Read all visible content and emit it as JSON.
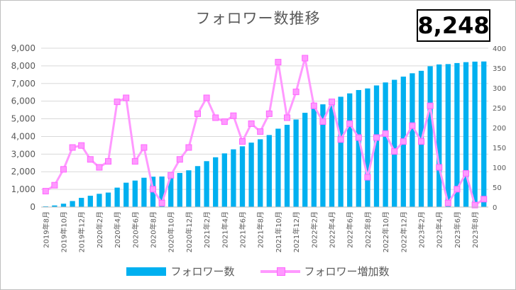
{
  "header": {
    "title": "フォロワー数推移",
    "total_followers": "8,248"
  },
  "colors": {
    "followers_bar": "#00b0f0",
    "increase_line": "#ff99ff",
    "grid": "#d9d9d9",
    "axis_text": "#595959"
  },
  "chart_data": {
    "type": "bar",
    "title": "フォロワー数推移",
    "categories": [
      "2019年8月",
      "2019年9月",
      "2019年10月",
      "2019年11月",
      "2019年12月",
      "2020年1月",
      "2020年2月",
      "2020年3月",
      "2020年4月",
      "2020年5月",
      "2020年6月",
      "2020年7月",
      "2020年8月",
      "2020年9月",
      "2020年10月",
      "2020年11月",
      "2020年12月",
      "2021年1月",
      "2021年2月",
      "2021年3月",
      "2021年4月",
      "2021年5月",
      "2021年6月",
      "2021年7月",
      "2021年8月",
      "2021年9月",
      "2021年10月",
      "2021年11月",
      "2021年12月",
      "2022年1月",
      "2022年2月",
      "2022年3月",
      "2022年4月",
      "2022年5月",
      "2022年6月",
      "2022年7月",
      "2022年8月",
      "2022年9月",
      "2022年10月",
      "2022年11月",
      "2022年12月",
      "2023年1月",
      "2023年2月",
      "2023年3月",
      "2023年4月",
      "2023年5月",
      "2023年6月",
      "2023年7月",
      "2023年8月",
      "2023年9月"
    ],
    "x_tick_labels": [
      "2019年8月",
      "2019年10月",
      "2019年12月",
      "2020年2月",
      "2020年4月",
      "2020年6月",
      "2020年8月",
      "2020年10月",
      "2020年12月",
      "2021年2月",
      "2021年4月",
      "2021年6月",
      "2021年8月",
      "2021年10月",
      "2021年12月",
      "2022年2月",
      "2022年4月",
      "2022年6月",
      "2022年8月",
      "2022年10月",
      "2022年12月",
      "2023年2月",
      "2023年4月",
      "2023年6月",
      "2023年8月"
    ],
    "series": [
      {
        "name": "フォロワー数",
        "type": "bar",
        "axis": "left",
        "values": [
          40,
          90,
          190,
          340,
          520,
          640,
          750,
          820,
          1100,
          1380,
          1500,
          1660,
          1720,
          1730,
          1800,
          1930,
          2080,
          2320,
          2600,
          2820,
          3040,
          3270,
          3440,
          3650,
          3840,
          4080,
          4440,
          4660,
          4960,
          5340,
          5600,
          5820,
          6000,
          6250,
          6440,
          6630,
          6720,
          6890,
          7060,
          7210,
          7390,
          7580,
          7720,
          7980,
          8080,
          8100,
          8160,
          8210,
          8240,
          8248
        ]
      },
      {
        "name": "フォロワー増加数",
        "type": "line",
        "axis": "right",
        "values": [
          40,
          55,
          95,
          150,
          155,
          120,
          100,
          115,
          265,
          275,
          115,
          150,
          45,
          10,
          80,
          120,
          150,
          235,
          275,
          225,
          215,
          230,
          165,
          210,
          190,
          235,
          365,
          225,
          290,
          375,
          255,
          215,
          265,
          170,
          210,
          175,
          75,
          175,
          185,
          140,
          165,
          205,
          165,
          255,
          100,
          10,
          45,
          85,
          5,
          20
        ]
      }
    ],
    "y_left": {
      "min": 0,
      "max": 9000,
      "ticks": [
        "0",
        "1,000",
        "2,000",
        "3,000",
        "4,000",
        "5,000",
        "6,000",
        "7,000",
        "8,000",
        "9,000"
      ]
    },
    "y_right": {
      "min": 0,
      "max": 400,
      "ticks": [
        "0",
        "50",
        "100",
        "150",
        "200",
        "250",
        "300",
        "350",
        "400"
      ]
    },
    "grid": true,
    "legend_position": "bottom"
  }
}
